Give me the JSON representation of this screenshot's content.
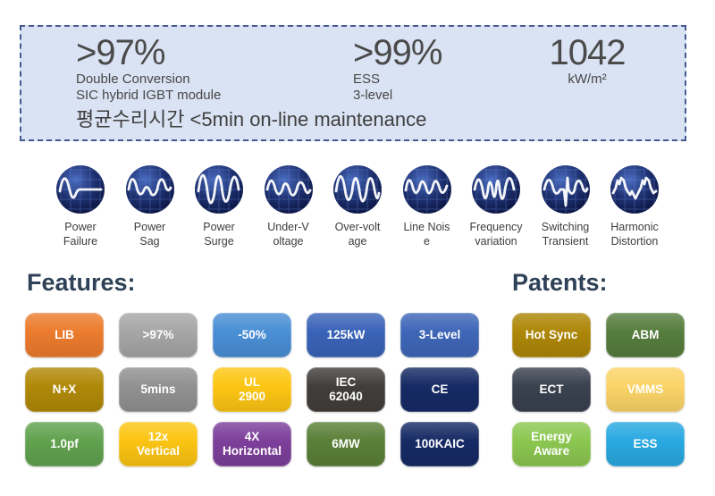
{
  "kpi": {
    "stats": [
      {
        "value": ">97%",
        "lines": [
          "Double Conversion",
          "SIC hybrid IGBT module"
        ]
      },
      {
        "value": ">99%",
        "lines": [
          "ESS",
          "3-level"
        ]
      },
      {
        "value": "1042",
        "lines": [
          "kW/m²"
        ]
      }
    ],
    "note": "평균수리시간 <5min on-line maintenance"
  },
  "disturbances": [
    {
      "icon": "power-failure-waveform-icon",
      "label": "Power\nFailure"
    },
    {
      "icon": "power-sag-waveform-icon",
      "label": "Power\nSag"
    },
    {
      "icon": "power-surge-waveform-icon",
      "label": "Power\nSurge"
    },
    {
      "icon": "under-voltage-waveform-icon",
      "label": "Under-V\noltage"
    },
    {
      "icon": "over-voltage-waveform-icon",
      "label": "Over-volt\nage"
    },
    {
      "icon": "line-noise-waveform-icon",
      "label": "Line Nois\ne"
    },
    {
      "icon": "frequency-variation-waveform-icon",
      "label": "Frequency\nvariation"
    },
    {
      "icon": "switching-transient-waveform-icon",
      "label": "Switching\nTransient"
    },
    {
      "icon": "harmonic-distortion-waveform-icon",
      "label": "Harmonic\nDistortion"
    }
  ],
  "features": {
    "heading": "Features:",
    "rows": [
      [
        {
          "label": "LIB",
          "color": "#ec7c2e"
        },
        {
          "label": ">97%",
          "color": "#a6a6a6"
        },
        {
          "label": "-50%",
          "color": "#4a8fd5"
        },
        {
          "label": "125kW",
          "color": "#3a63b8"
        },
        {
          "label": "3-Level",
          "color": "#3f66b8"
        }
      ],
      [
        {
          "label": "N+X",
          "color": "#b18908"
        },
        {
          "label": "5mins",
          "color": "#919191"
        },
        {
          "label": "UL\n2900",
          "color": "#fdc613"
        },
        {
          "label": "IEC\n62040",
          "color": "#413e3b"
        },
        {
          "label": "CE",
          "color": "#162a64"
        }
      ],
      [
        {
          "label": "1.0pf",
          "color": "#61a24f"
        },
        {
          "label": "12x\nVertical",
          "color": "#fcc513"
        },
        {
          "label": "4X\nHorizontal",
          "color": "#7d3f9b"
        },
        {
          "label": "6MW",
          "color": "#5a8038"
        },
        {
          "label": "100KAIC",
          "color": "#162a64"
        }
      ]
    ]
  },
  "patents": {
    "heading": "Patents:",
    "rows": [
      [
        {
          "label": "Hot Sync",
          "color": "#ad8708"
        },
        {
          "label": "ABM",
          "color": "#567d3e"
        }
      ],
      [
        {
          "label": "ECT",
          "color": "#3a414f"
        },
        {
          "label": "VMMS",
          "color": "#fbd468"
        }
      ],
      [
        {
          "label": "Energy\nAware",
          "color": "#8cc751"
        },
        {
          "label": "ESS",
          "color": "#29a9e1"
        }
      ]
    ]
  },
  "palette": {
    "panel_bg": "#dae3f3",
    "panel_border": "#44598f",
    "heading_color": "#2e4156",
    "body_text": "#474747"
  }
}
